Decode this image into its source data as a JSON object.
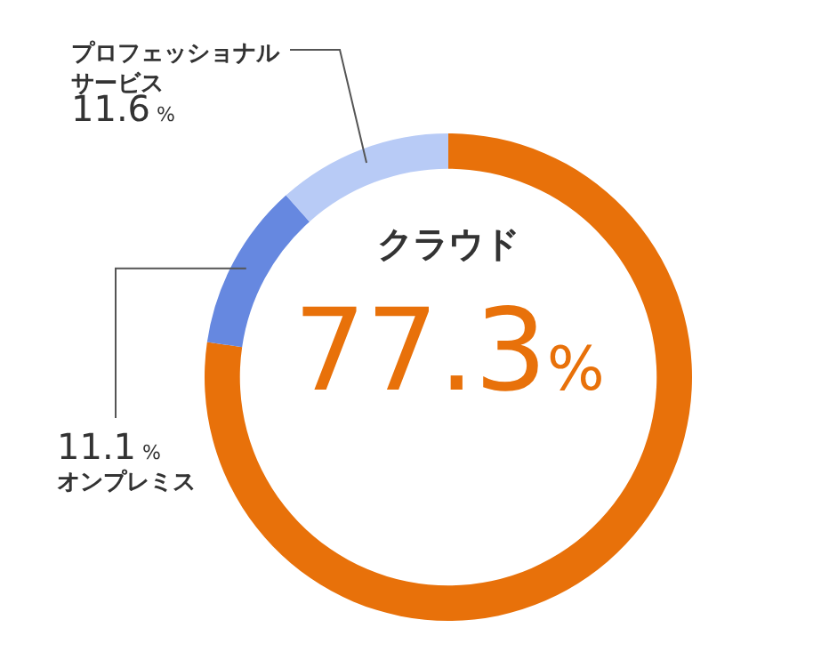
{
  "chart_data": {
    "type": "donut",
    "categories": [
      "クラウド",
      "オンプレミス",
      "プロフェッショナルサービス"
    ],
    "values": [
      77.3,
      11.1,
      11.6
    ],
    "colors": [
      "#e8710a",
      "#6688e0",
      "#b8cbf6"
    ],
    "value_labels": [
      "77.3%",
      "11.1%",
      "11.6%"
    ],
    "legend": false
  }
}
